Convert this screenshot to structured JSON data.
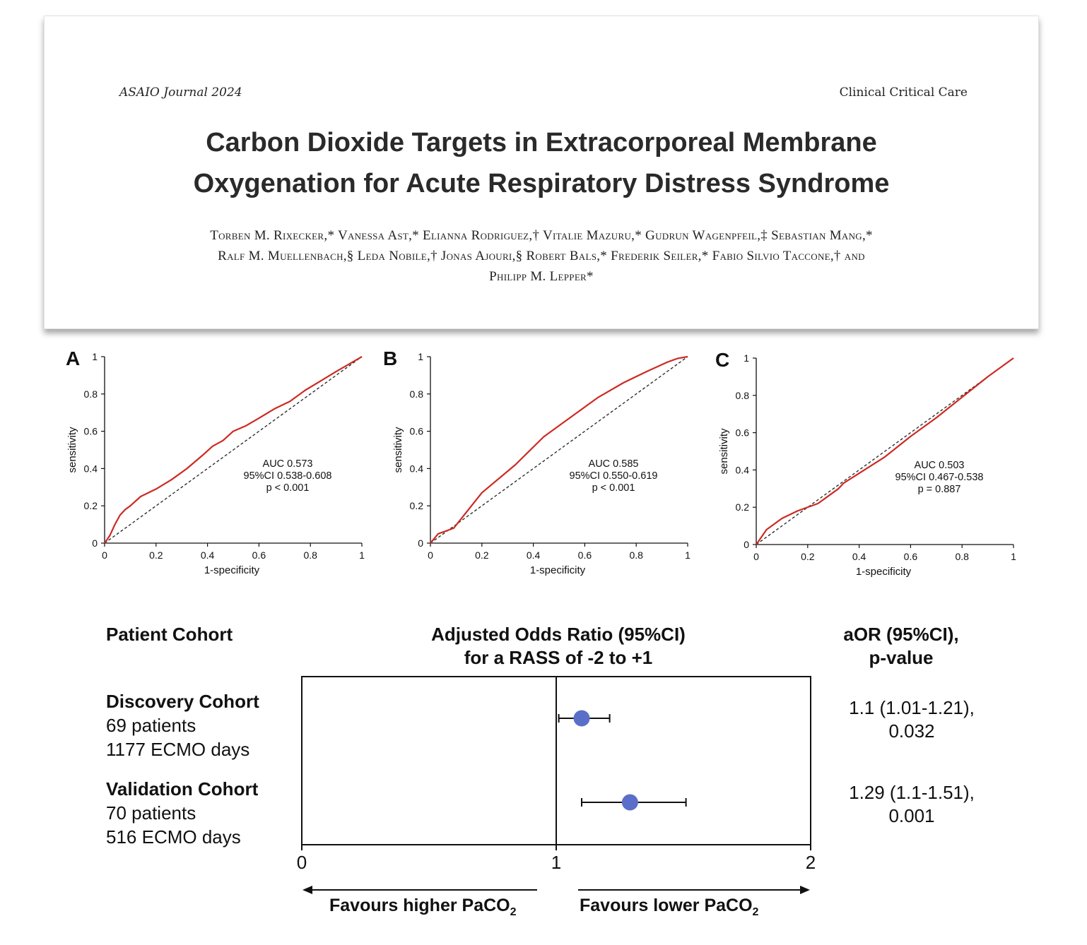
{
  "header": {
    "journal": "ASAIO Journal 2024",
    "section": "Clinical Critical Care",
    "title_line1": "Carbon Dioxide Targets in Extracorporeal Membrane",
    "title_line2": "Oxygenation for Acute Respiratory Distress Syndrome",
    "authors_line1": "Torben M. Rixecker,* Vanessa Ast,* Elianna Rodriguez,† Vitalie Mazuru,* Gudrun Wagenpfeil,‡ Sebastian Mang,*",
    "authors_line2": "Ralf M. Muellenbach,§ Leda Nobile,† Jonas Ajouri,§ Robert Bals,* Frederik Seiler,* Fabio Silvio Taccone,† and",
    "authors_line3": "Philipp M. Lepper*"
  },
  "chart_data": [
    {
      "type": "line",
      "panel": "A",
      "xlabel": "1-specificity",
      "ylabel": "sensitivity",
      "xlim": [
        0,
        1
      ],
      "ylim": [
        0,
        1
      ],
      "xticks": [
        "0",
        "0.2",
        "0.4",
        "0.6",
        "0.8",
        "1"
      ],
      "yticks": [
        "0",
        "0.2",
        "0.4",
        "0.6",
        "0.8",
        "1"
      ],
      "annotation": [
        "AUC 0.573",
        "95%CI 0.538-0.608",
        "p < 0.001"
      ],
      "series": [
        {
          "x": [
            0,
            0.02,
            0.04,
            0.06,
            0.08,
            0.1,
            0.14,
            0.2,
            0.26,
            0.32,
            0.38,
            0.42,
            0.46,
            0.5,
            0.55,
            0.6,
            0.66,
            0.72,
            0.78,
            0.84,
            0.9,
            0.95,
            1
          ],
          "y": [
            0,
            0.04,
            0.1,
            0.15,
            0.18,
            0.2,
            0.25,
            0.29,
            0.34,
            0.4,
            0.47,
            0.52,
            0.55,
            0.6,
            0.63,
            0.67,
            0.72,
            0.76,
            0.82,
            0.87,
            0.92,
            0.96,
            1
          ]
        },
        {
          "x": [
            0,
            1
          ],
          "y": [
            0,
            1
          ]
        }
      ]
    },
    {
      "type": "line",
      "panel": "B",
      "xlabel": "1-specificity",
      "ylabel": "sensitivity",
      "xlim": [
        0,
        1
      ],
      "ylim": [
        0,
        1
      ],
      "xticks": [
        "0",
        "0.2",
        "0.4",
        "0.6",
        "0.8",
        "1"
      ],
      "yticks": [
        "0",
        "0.2",
        "0.4",
        "0.6",
        "0.8",
        "1"
      ],
      "annotation": [
        "AUC 0.585",
        "95%CI 0.550-0.619",
        "p < 0.001"
      ],
      "series": [
        {
          "x": [
            0,
            0.03,
            0.09,
            0.2,
            0.33,
            0.44,
            0.55,
            0.65,
            0.75,
            0.84,
            0.92,
            0.96,
            1
          ],
          "y": [
            0,
            0.05,
            0.08,
            0.27,
            0.42,
            0.57,
            0.68,
            0.78,
            0.86,
            0.92,
            0.97,
            0.99,
            1
          ]
        },
        {
          "x": [
            0,
            1
          ],
          "y": [
            0,
            1
          ]
        }
      ]
    },
    {
      "type": "line",
      "panel": "C",
      "xlabel": "1-specificity",
      "ylabel": "sensitivity",
      "xlim": [
        0,
        1
      ],
      "ylim": [
        0,
        1
      ],
      "xticks": [
        "0",
        "0.2",
        "0.4",
        "0.6",
        "0.8",
        "1"
      ],
      "yticks": [
        "0",
        "0.2",
        "0.4",
        "0.6",
        "0.8",
        "1"
      ],
      "annotation": [
        "AUC 0.503",
        "95%CI 0.467-0.538",
        "p = 0.887"
      ],
      "series": [
        {
          "x": [
            0,
            0.04,
            0.1,
            0.16,
            0.24,
            0.32,
            0.34,
            0.42,
            0.5,
            0.6,
            0.7,
            0.8,
            0.9,
            1
          ],
          "y": [
            0,
            0.08,
            0.14,
            0.18,
            0.22,
            0.3,
            0.33,
            0.4,
            0.47,
            0.58,
            0.68,
            0.79,
            0.9,
            1
          ]
        },
        {
          "x": [
            0,
            1
          ],
          "y": [
            0,
            1
          ]
        }
      ]
    },
    {
      "type": "forest",
      "title": "Adjusted Odds Ratio (95%CI) for a RASS of -2 to +1",
      "xlim": [
        0,
        2
      ],
      "xticks": [
        "0",
        "1",
        "2"
      ],
      "reference": 1,
      "rows": [
        {
          "estimate": 1.1,
          "lower": 1.01,
          "upper": 1.21
        },
        {
          "estimate": 1.29,
          "lower": 1.1,
          "upper": 1.51
        }
      ]
    }
  ],
  "forest": {
    "col_left": "Patient Cohort",
    "col_mid_line1": "Adjusted Odds Ratio (95%CI)",
    "col_mid_line2": "for a RASS of -2 to +1",
    "col_right_line1": "aOR (95%CI),",
    "col_right_line2": "p-value",
    "cohorts": [
      {
        "name": "Discovery Cohort",
        "patients": "69 patients",
        "days": "1177 ECMO days",
        "aor": "1.1 (1.01-1.21),",
        "p": "0.032"
      },
      {
        "name": "Validation Cohort",
        "patients": "70 patients",
        "days": "516 ECMO days",
        "aor": "1.29 (1.1-1.51),",
        "p": "0.001"
      }
    ],
    "favour_left_pre": "Favours higher PaCO",
    "favour_right_pre": "Favours lower PaCO",
    "favour_sub": "2",
    "marker_color": "#5b6fc9",
    "curve_color": "#cc2a22"
  }
}
